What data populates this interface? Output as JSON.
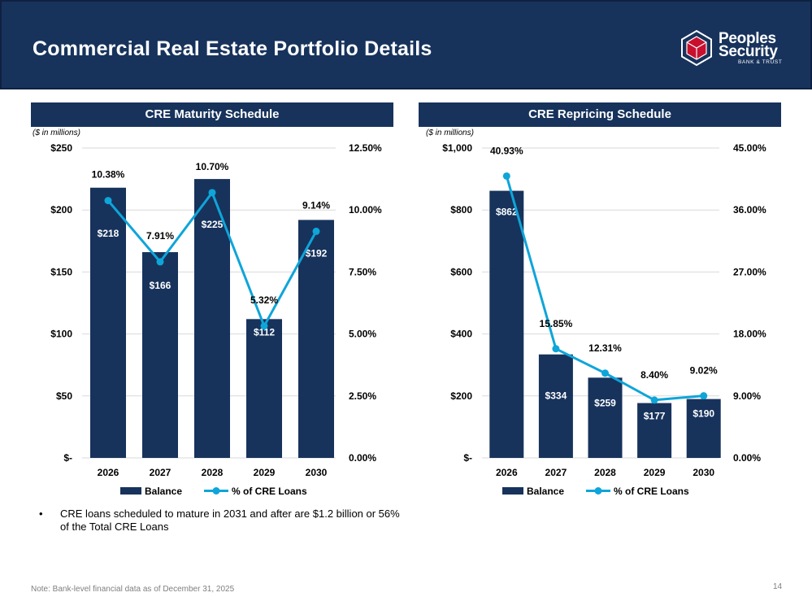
{
  "header": {
    "title": "Commercial Real Estate Portfolio Details",
    "logo": {
      "line1": "Peoples",
      "line2": "Security",
      "line3": "BANK & TRUST",
      "icon": "hexagon-cube-icon"
    }
  },
  "colors": {
    "navy": "#17335c",
    "line": "#0ea5d9",
    "grid": "#d9d9d9"
  },
  "footer": {
    "note": "Note: Bank-level financial data as of December 31, 2025",
    "page": "14"
  },
  "bullet": {
    "text": "CRE loans scheduled to mature in 2031 and after are $1.2 billion or 56% of the Total CRE Loans"
  },
  "chart_data": [
    {
      "type": "bar",
      "title": "CRE Maturity Schedule",
      "units_note": "($ in millions)",
      "categories": [
        "2026",
        "2027",
        "2028",
        "2029",
        "2030"
      ],
      "series": [
        {
          "name": "Balance",
          "kind": "bar",
          "axis": "left",
          "values": [
            218,
            166,
            225,
            112,
            192
          ],
          "labels": [
            "$218",
            "$166",
            "$225",
            "$112",
            "$192"
          ]
        },
        {
          "name": "% of CRE Loans",
          "kind": "line",
          "axis": "right",
          "values": [
            10.38,
            7.91,
            10.7,
            5.32,
            9.14
          ],
          "labels": [
            "10.38%",
            "7.91%",
            "10.70%",
            "5.32%",
            "9.14%"
          ]
        }
      ],
      "y_left": {
        "min": 0,
        "max": 250,
        "ticks": [
          0,
          50,
          100,
          150,
          200,
          250
        ],
        "tick_labels": [
          "$-",
          "$50",
          "$100",
          "$150",
          "$200",
          "$250"
        ]
      },
      "y_right": {
        "min": 0,
        "max": 12.5,
        "ticks": [
          0,
          2.5,
          5,
          7.5,
          10,
          12.5
        ],
        "tick_labels": [
          "0.00%",
          "2.50%",
          "5.00%",
          "7.50%",
          "10.00%",
          "12.50%"
        ]
      },
      "grid": true,
      "legend": "bottom"
    },
    {
      "type": "bar",
      "title": "CRE Repricing Schedule",
      "units_note": "($ in millions)",
      "categories": [
        "2026",
        "2027",
        "2028",
        "2029",
        "2030"
      ],
      "series": [
        {
          "name": "Balance",
          "kind": "bar",
          "axis": "left",
          "values": [
            862,
            334,
            259,
            177,
            190
          ],
          "labels": [
            "$862",
            "$334",
            "$259",
            "$177",
            "$190"
          ]
        },
        {
          "name": "% of CRE Loans",
          "kind": "line",
          "axis": "right",
          "values": [
            40.93,
            15.85,
            12.31,
            8.4,
            9.02
          ],
          "labels": [
            "40.93%",
            "15.85%",
            "12.31%",
            "8.40%",
            "9.02%"
          ]
        }
      ],
      "y_left": {
        "min": 0,
        "max": 1000,
        "ticks": [
          0,
          200,
          400,
          600,
          800,
          1000
        ],
        "tick_labels": [
          "$-",
          "$200",
          "$400",
          "$600",
          "$800",
          "$1,000"
        ]
      },
      "y_right": {
        "min": 0,
        "max": 45,
        "ticks": [
          0,
          9,
          18,
          27,
          36,
          45
        ],
        "tick_labels": [
          "0.00%",
          "9.00%",
          "18.00%",
          "27.00%",
          "36.00%",
          "45.00%"
        ]
      },
      "grid": true,
      "legend": "bottom"
    }
  ]
}
